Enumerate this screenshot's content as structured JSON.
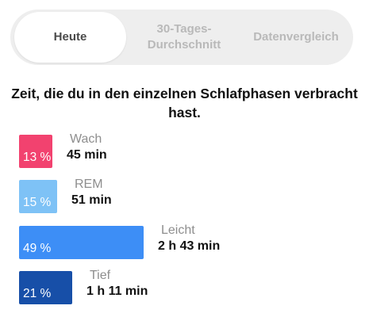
{
  "tabs": [
    {
      "label": "Heute",
      "active": true
    },
    {
      "label": "30-Tages-\nDurchschnitt",
      "active": false
    },
    {
      "label": "Datenvergleich",
      "active": false
    }
  ],
  "heading": "Zeit, die du in den einzelnen Schlafphasen verbracht hast.",
  "phases": [
    {
      "name": "Wach",
      "percent_label": "13 %",
      "percent": 13,
      "duration": "45 min",
      "color": "#f2426f"
    },
    {
      "name": "REM",
      "percent_label": "15 %",
      "percent": 15,
      "duration": "51 min",
      "color": "#7ec2f6"
    },
    {
      "name": "Leicht",
      "percent_label": "49 %",
      "percent": 49,
      "duration": "2 h 43 min",
      "color": "#3d8ef6"
    },
    {
      "name": "Tief",
      "percent_label": "21 %",
      "percent": 21,
      "duration": "1 h 11 min",
      "color": "#174fa8"
    }
  ]
}
